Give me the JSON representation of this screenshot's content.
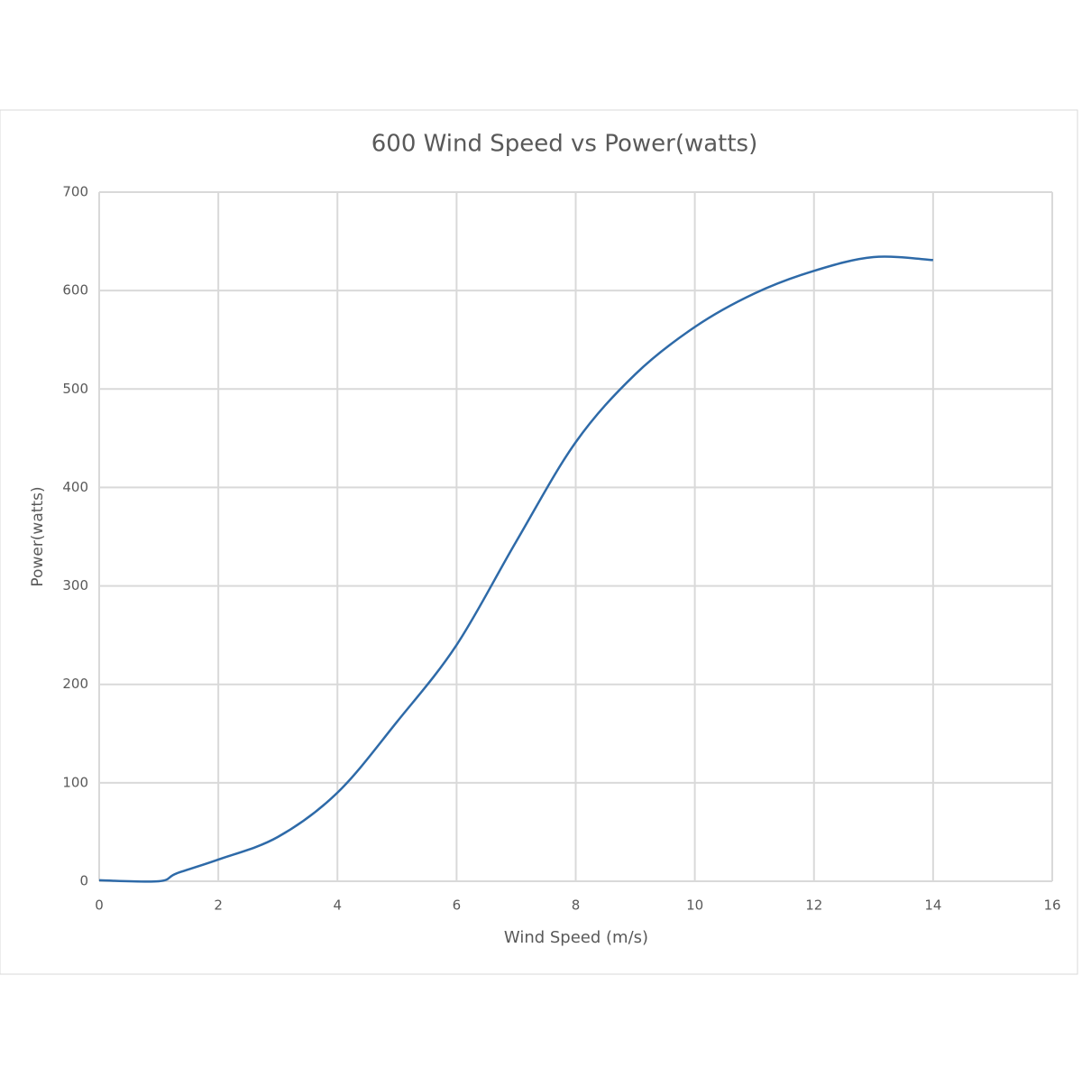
{
  "chart_data": {
    "type": "line",
    "title": "600 Wind Speed vs Power(watts)",
    "x_label": "Wind Speed (m/s)",
    "y_label": "Power(watts)",
    "x": [
      0,
      1,
      1.3,
      2,
      3,
      4,
      5,
      6,
      7,
      8,
      9,
      10,
      11,
      12,
      13,
      14
    ],
    "series": [
      {
        "name": "Power(watts)",
        "color": "#2e6aa8",
        "values": [
          1,
          0,
          8,
          22,
          45,
          90,
          162,
          240,
          345,
          446,
          515,
          563,
          597,
          620,
          634,
          631
        ]
      }
    ],
    "xlim": [
      0,
      16
    ],
    "xticks": [
      0,
      2,
      4,
      6,
      8,
      10,
      12,
      14,
      16
    ],
    "ylim": [
      0,
      700
    ],
    "yticks": [
      0,
      100,
      200,
      300,
      400,
      500,
      600,
      700
    ],
    "grid": true
  }
}
